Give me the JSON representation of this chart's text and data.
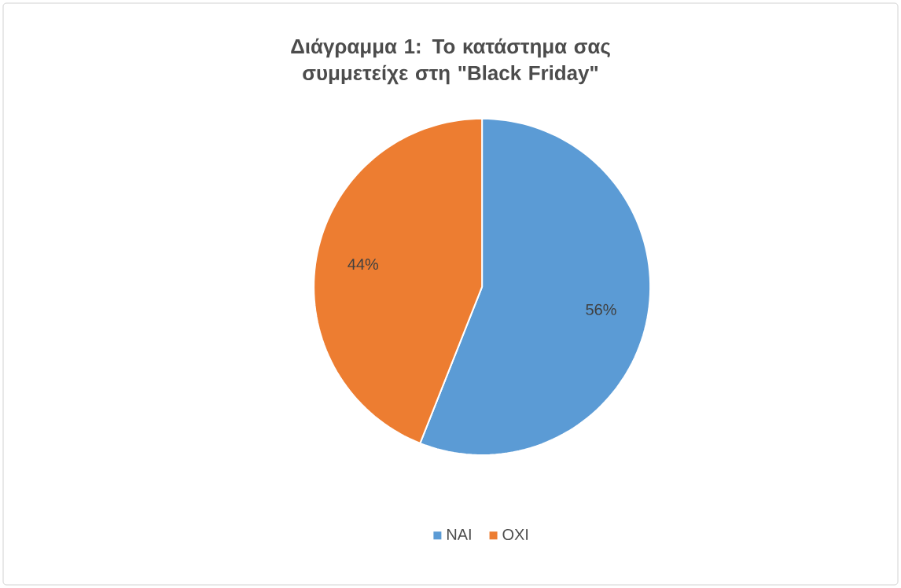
{
  "chart_data": {
    "type": "pie",
    "title": "Διάγραμμα 1: Το κατάστημα σας συμμετείχε στη \"Black Friday\"",
    "categories": [
      "ΝΑΙ",
      "ΟΧΙ"
    ],
    "values": [
      56,
      44
    ],
    "colors": [
      "#5b9bd5",
      "#ed7d31"
    ],
    "value_labels": [
      "56%",
      "44%"
    ],
    "legend": "bottom"
  }
}
